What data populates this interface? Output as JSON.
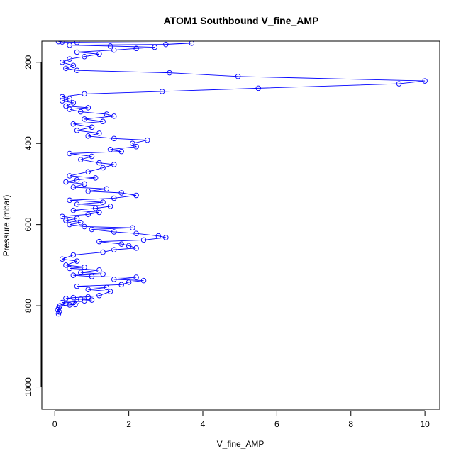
{
  "chart_data": {
    "type": "line",
    "title": "ATOM1 Southbound V_fine_AMP",
    "xlabel": "V_fine_AMP",
    "ylabel": "Pressure (mbar)",
    "xlim": [
      -0.35,
      10.4
    ],
    "ylim": [
      1055,
      148
    ],
    "y_inverted": true,
    "x_ticks": [
      0,
      2,
      4,
      6,
      8,
      10
    ],
    "y_ticks": [
      200,
      400,
      600,
      800,
      1000
    ],
    "grid": false,
    "legend": "none",
    "marker": "open-circle",
    "series": [
      {
        "color": "#0000ff",
        "points": [
          [
            0.1,
            820
          ],
          [
            0.12,
            815
          ],
          [
            0.08,
            810
          ],
          [
            0.11,
            805
          ],
          [
            0.14,
            800
          ],
          [
            0.4,
            798
          ],
          [
            0.55,
            797
          ],
          [
            0.3,
            795
          ],
          [
            0.2,
            792
          ],
          [
            0.6,
            790
          ],
          [
            0.8,
            788
          ],
          [
            1.0,
            786
          ],
          [
            0.7,
            784
          ],
          [
            0.3,
            782
          ],
          [
            0.5,
            780
          ],
          [
            0.9,
            778
          ],
          [
            1.2,
            775
          ],
          [
            1.5,
            765
          ],
          [
            0.9,
            760
          ],
          [
            1.4,
            755
          ],
          [
            0.6,
            752
          ],
          [
            1.8,
            748
          ],
          [
            2.0,
            742
          ],
          [
            2.4,
            738
          ],
          [
            1.6,
            735
          ],
          [
            2.2,
            730
          ],
          [
            1.0,
            728
          ],
          [
            0.5,
            725
          ],
          [
            1.3,
            722
          ],
          [
            0.7,
            718
          ],
          [
            1.2,
            712
          ],
          [
            0.4,
            708
          ],
          [
            0.8,
            705
          ],
          [
            0.3,
            700
          ],
          [
            0.6,
            690
          ],
          [
            0.2,
            685
          ],
          [
            0.5,
            675
          ],
          [
            1.3,
            668
          ],
          [
            1.6,
            662
          ],
          [
            2.2,
            658
          ],
          [
            2.0,
            652
          ],
          [
            1.8,
            648
          ],
          [
            1.2,
            642
          ],
          [
            2.4,
            638
          ],
          [
            3.0,
            632
          ],
          [
            2.8,
            628
          ],
          [
            2.2,
            622
          ],
          [
            1.6,
            618
          ],
          [
            1.0,
            612
          ],
          [
            2.1,
            608
          ],
          [
            0.8,
            605
          ],
          [
            0.4,
            600
          ],
          [
            0.7,
            595
          ],
          [
            0.3,
            590
          ],
          [
            0.6,
            585
          ],
          [
            0.2,
            580
          ],
          [
            0.9,
            575
          ],
          [
            1.2,
            570
          ],
          [
            0.5,
            565
          ],
          [
            1.1,
            560
          ],
          [
            1.5,
            555
          ],
          [
            0.6,
            550
          ],
          [
            1.3,
            545
          ],
          [
            0.4,
            540
          ],
          [
            1.6,
            535
          ],
          [
            2.2,
            528
          ],
          [
            1.8,
            522
          ],
          [
            0.9,
            518
          ],
          [
            1.4,
            512
          ],
          [
            0.5,
            508
          ],
          [
            0.8,
            500
          ],
          [
            0.3,
            495
          ],
          [
            0.6,
            490
          ],
          [
            1.1,
            485
          ],
          [
            0.4,
            480
          ],
          [
            0.9,
            470
          ],
          [
            1.3,
            460
          ],
          [
            1.6,
            452
          ],
          [
            1.2,
            448
          ],
          [
            0.7,
            440
          ],
          [
            1.0,
            432
          ],
          [
            0.4,
            425
          ],
          [
            1.8,
            420
          ],
          [
            1.5,
            415
          ],
          [
            2.2,
            408
          ],
          [
            2.1,
            400
          ],
          [
            2.5,
            392
          ],
          [
            1.6,
            388
          ],
          [
            0.9,
            382
          ],
          [
            1.2,
            375
          ],
          [
            0.6,
            368
          ],
          [
            1.0,
            360
          ],
          [
            0.5,
            352
          ],
          [
            1.3,
            346
          ],
          [
            0.8,
            340
          ],
          [
            1.6,
            333
          ],
          [
            1.4,
            328
          ],
          [
            0.7,
            322
          ],
          [
            0.4,
            316
          ],
          [
            0.9,
            312
          ],
          [
            0.3,
            308
          ],
          [
            0.5,
            300
          ],
          [
            0.2,
            295
          ],
          [
            0.4,
            290
          ],
          [
            0.2,
            285
          ],
          [
            0.8,
            278
          ],
          [
            2.9,
            272
          ],
          [
            5.5,
            264
          ],
          [
            9.3,
            253
          ],
          [
            10.0,
            246
          ],
          [
            4.95,
            235
          ],
          [
            3.1,
            226
          ],
          [
            0.6,
            220
          ],
          [
            0.3,
            215
          ],
          [
            0.5,
            208
          ],
          [
            0.2,
            200
          ],
          [
            0.4,
            192
          ],
          [
            0.8,
            186
          ],
          [
            1.2,
            180
          ],
          [
            0.6,
            175
          ],
          [
            1.6,
            170
          ],
          [
            2.2,
            166
          ],
          [
            2.7,
            163
          ],
          [
            1.5,
            160
          ],
          [
            0.4,
            158
          ],
          [
            3.0,
            156
          ],
          [
            3.7,
            153
          ],
          [
            0.6,
            151
          ],
          [
            0.2,
            150
          ],
          [
            0.1,
            149
          ]
        ]
      }
    ]
  }
}
